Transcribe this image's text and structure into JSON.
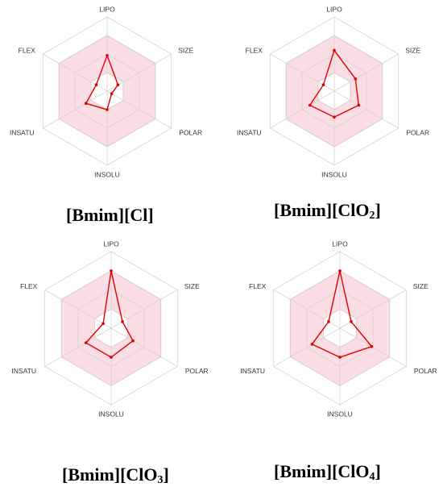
{
  "chart_data": [
    {
      "type": "radar",
      "axes": [
        "LIPO",
        "SIZE",
        "POLAR",
        "INSOLU",
        "INSATU",
        "FLEX"
      ],
      "values": [
        0.48,
        0.17,
        0.07,
        0.25,
        0.33,
        0.17
      ],
      "title_parts": [
        {
          "text": "[Bmim][Cl]",
          "sub": false
        }
      ]
    },
    {
      "type": "radar",
      "axes": [
        "LIPO",
        "SIZE",
        "POLAR",
        "INSOLU",
        "INSATU",
        "FLEX"
      ],
      "values": [
        0.55,
        0.33,
        0.38,
        0.35,
        0.38,
        0.17
      ],
      "title_parts": [
        {
          "text": "[Bmim][ClO",
          "sub": false
        },
        {
          "text": "2",
          "sub": true
        },
        {
          "text": "]",
          "sub": false
        }
      ]
    },
    {
      "type": "radar",
      "axes": [
        "LIPO",
        "SIZE",
        "POLAR",
        "INSOLU",
        "INSATU",
        "FLEX"
      ],
      "values": [
        0.75,
        0.17,
        0.33,
        0.38,
        0.38,
        0.12
      ],
      "title_parts": [
        {
          "text": "[Bmim][ClO",
          "sub": false
        },
        {
          "text": "3",
          "sub": true
        },
        {
          "text": "]",
          "sub": false
        }
      ]
    },
    {
      "type": "radar",
      "axes": [
        "LIPO",
        "SIZE",
        "POLAR",
        "INSOLU",
        "INSATU",
        "FLEX"
      ],
      "values": [
        0.75,
        0.17,
        0.48,
        0.38,
        0.42,
        0.17
      ],
      "title_parts": [
        {
          "text": "[Bmim][ClO",
          "sub": false
        },
        {
          "text": "4",
          "sub": true
        },
        {
          "text": "]",
          "sub": false
        }
      ]
    }
  ],
  "colors": {
    "grid": "#d4d4d4",
    "optimal_fill": "#f7c6d3",
    "optimal_stroke": "#f29ab0",
    "series": "#e00000"
  }
}
